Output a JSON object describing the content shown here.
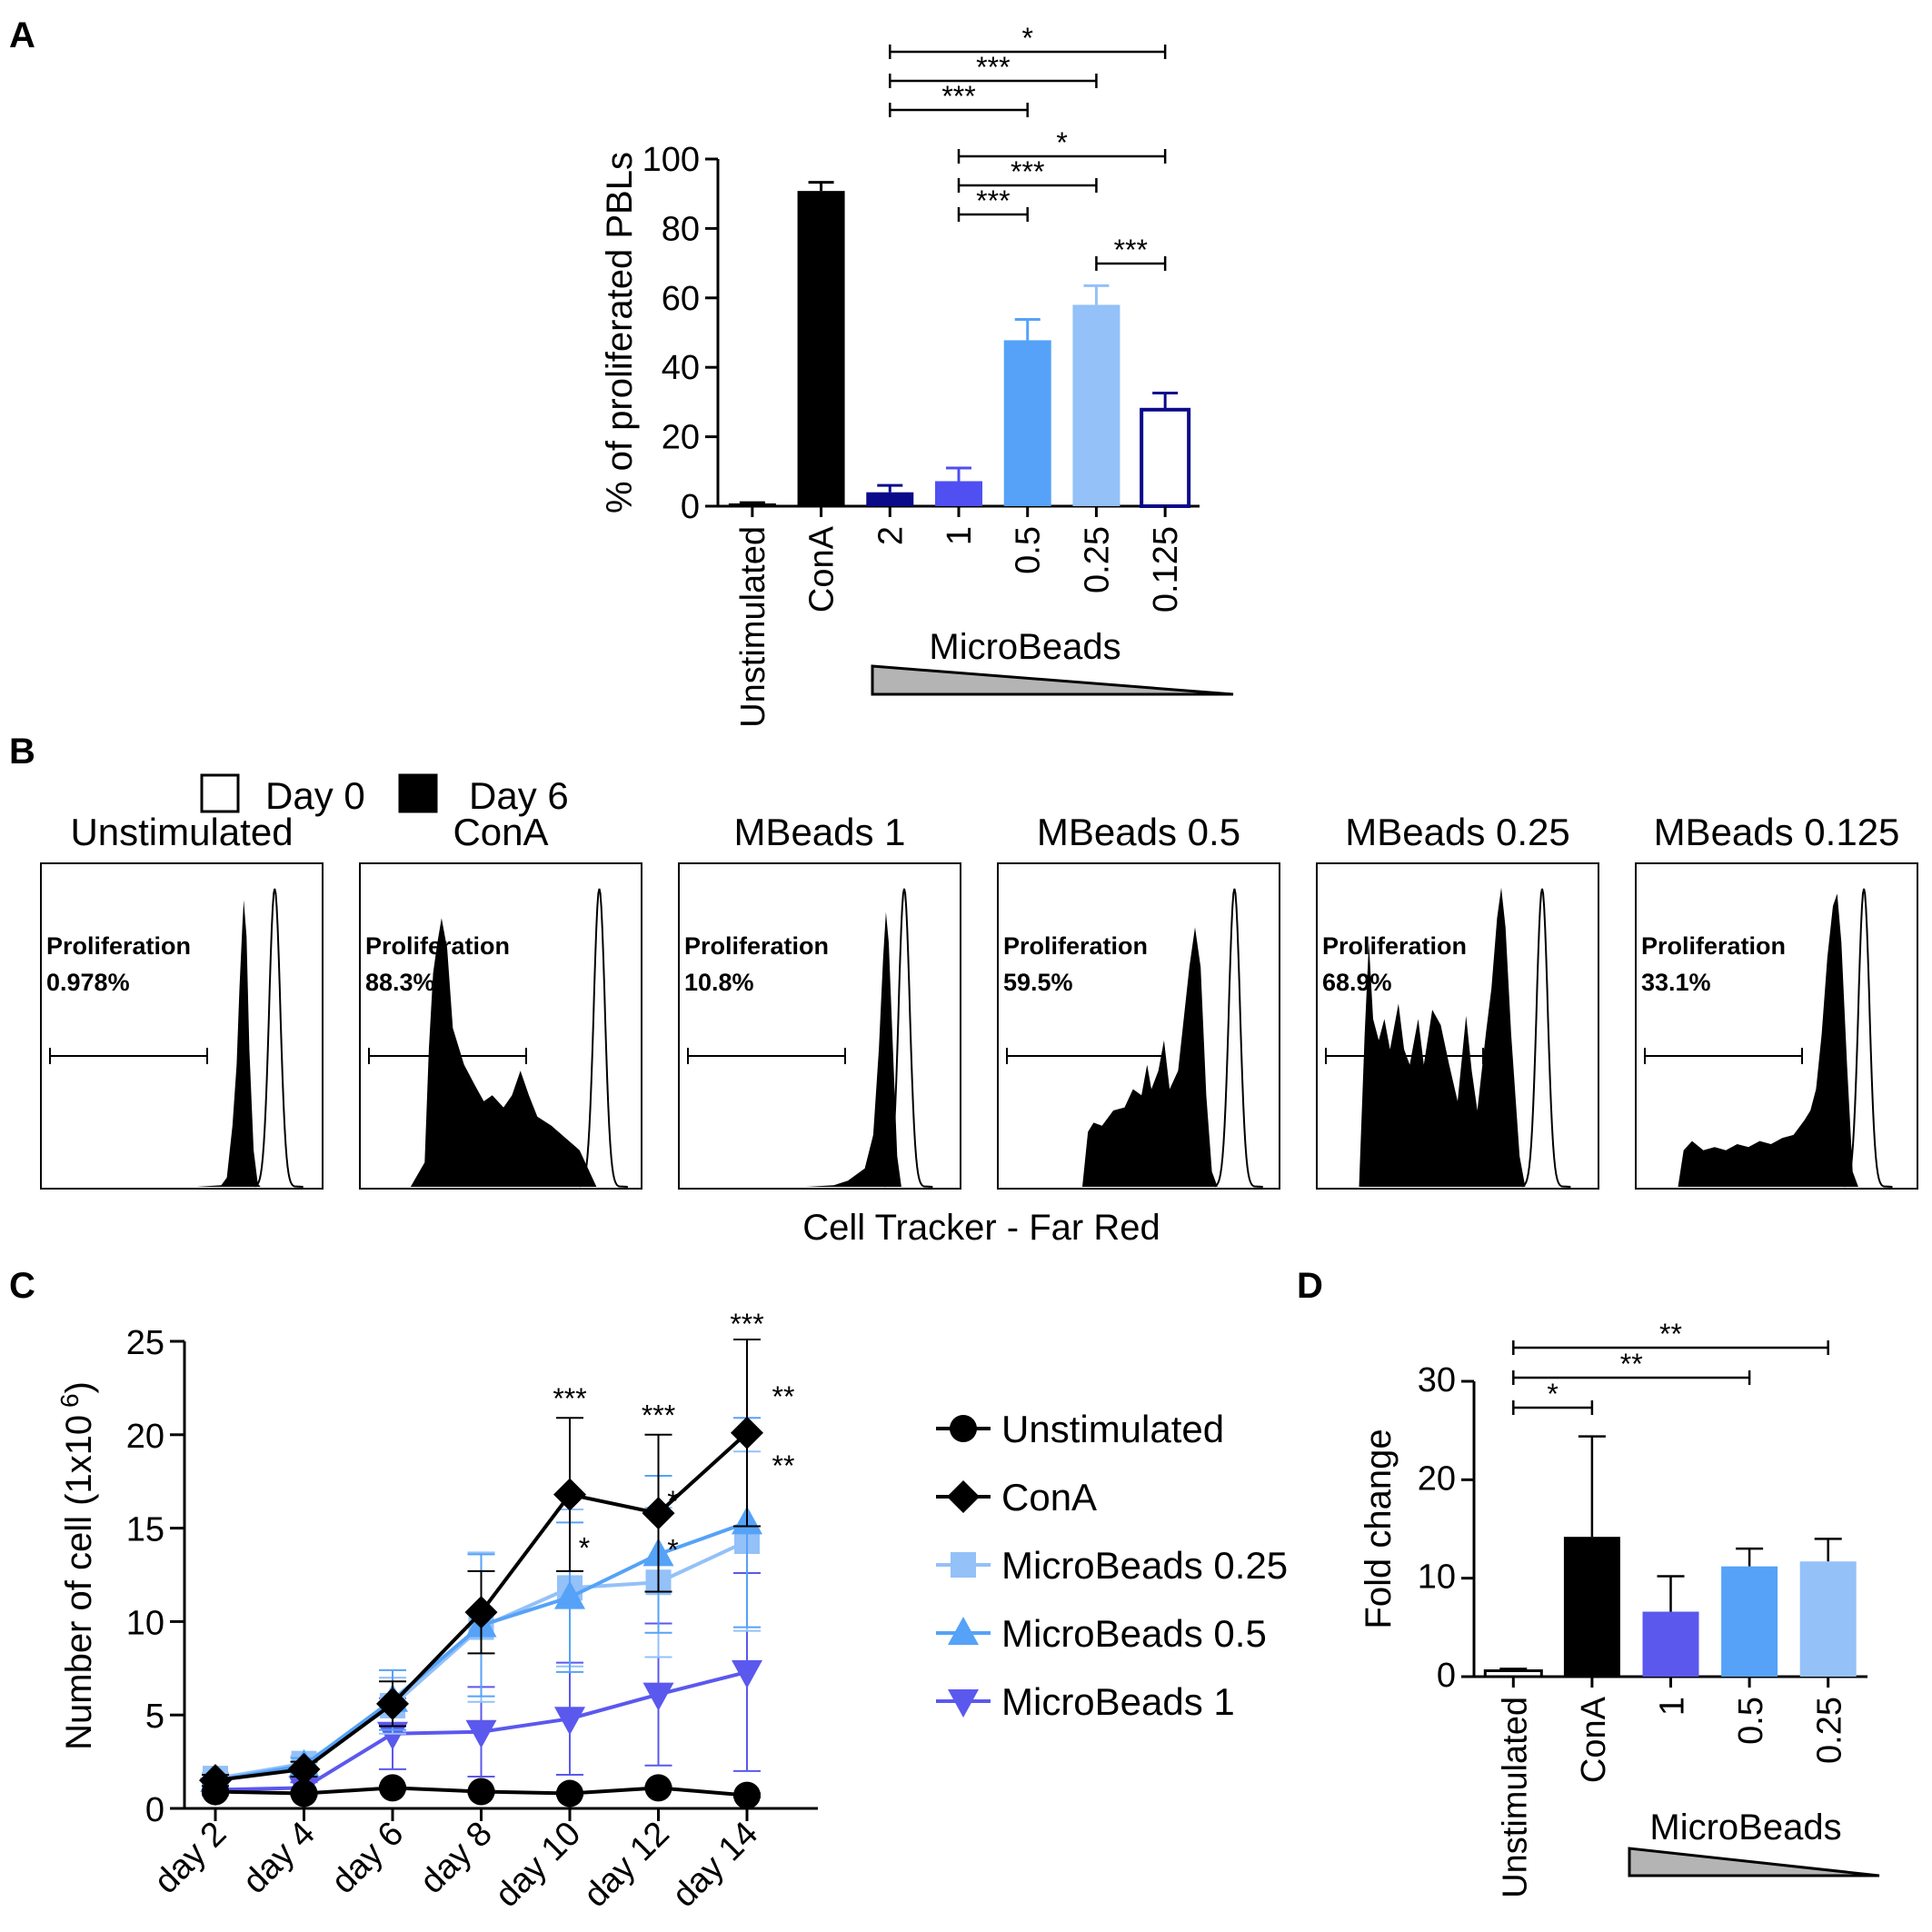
{
  "chart_data": [
    {
      "panel": "A",
      "type": "bar",
      "ylabel": "% of proliferated PBLs",
      "ylim": [
        0,
        100
      ],
      "yticks": [
        0,
        20,
        40,
        60,
        80,
        100
      ],
      "categories": [
        "Unstimulated",
        "ConA",
        "2",
        "1",
        "0.5",
        "0.25",
        "0.125"
      ],
      "values": [
        0.8,
        90.8,
        4.0,
        7.2,
        47.8,
        58.0,
        27.8
      ],
      "errors": [
        0.2,
        2.5,
        2.0,
        3.8,
        6.0,
        5.5,
        4.8
      ],
      "colors": [
        "#000000",
        "#000000",
        "#0a0a8a",
        "#4f4ff2",
        "#55a2f8",
        "#93c1f8",
        "#ffffff"
      ],
      "group_label": "MicroBeads",
      "significance": [
        {
          "from": 2,
          "to": 6,
          "label": "*"
        },
        {
          "from": 2,
          "to": 5,
          "label": "***"
        },
        {
          "from": 2,
          "to": 4,
          "label": "***"
        },
        {
          "from": 3,
          "to": 6,
          "label": "*"
        },
        {
          "from": 3,
          "to": 5,
          "label": "***"
        },
        {
          "from": 3,
          "to": 4,
          "label": "***"
        },
        {
          "from": 5,
          "to": 6,
          "label": "***"
        }
      ]
    },
    {
      "panel": "B",
      "type": "histogram",
      "xlabel": "Cell Tracker - Far Red",
      "legend": [
        {
          "label": "Day 0",
          "fill": "#ffffff"
        },
        {
          "label": "Day 6",
          "fill": "#000000"
        }
      ],
      "gate_label": "Proliferation",
      "panels": [
        {
          "title": "Unstimulated",
          "value": "0.978%"
        },
        {
          "title": "ConA",
          "value": "88.3%"
        },
        {
          "title": "MBeads 1",
          "value": "10.8%"
        },
        {
          "title": "MBeads 0.5",
          "value": "59.5%"
        },
        {
          "title": "MBeads 0.25",
          "value": "68.9%"
        },
        {
          "title": "MBeads 0.125",
          "value": "33.1%"
        }
      ]
    },
    {
      "panel": "C",
      "type": "line",
      "ylabel": "Number of cell (1x10",
      "ylabel_sup": "6",
      "ylabel_end": ")",
      "ylim": [
        0,
        25
      ],
      "yticks": [
        0,
        5,
        10,
        15,
        20,
        25
      ],
      "x": [
        "day 2",
        "day 4",
        "day 6",
        "day 8",
        "day 10",
        "day 12",
        "day 14"
      ],
      "series": [
        {
          "name": "Unstimulated",
          "color": "#000000",
          "marker": "circle",
          "values": [
            0.9,
            0.8,
            1.1,
            0.9,
            0.8,
            1.1,
            0.7
          ],
          "errors": [
            0.1,
            0.1,
            0.1,
            0.1,
            0.1,
            0.1,
            0.1
          ]
        },
        {
          "name": "ConA",
          "color": "#000000",
          "marker": "diamond",
          "values": [
            1.5,
            2.1,
            5.6,
            10.5,
            16.8,
            15.8,
            20.1
          ],
          "errors": [
            0.3,
            0.4,
            1.2,
            2.2,
            4.1,
            4.2,
            5.0
          ]
        },
        {
          "name": "MicroBeads 0.25",
          "color": "#93c1f8",
          "marker": "square",
          "values": [
            1.6,
            2.4,
            5.5,
            9.7,
            11.8,
            12.1,
            14.3
          ],
          "errors": [
            0.3,
            0.4,
            1.5,
            4.0,
            4.2,
            4.0,
            4.8
          ]
        },
        {
          "name": "MicroBeads 0.5",
          "color": "#55a2f8",
          "marker": "triangle-up",
          "values": [
            1.5,
            2.3,
            5.8,
            9.8,
            11.3,
            13.6,
            15.3
          ],
          "errors": [
            0.3,
            0.4,
            1.6,
            3.8,
            4.0,
            4.2,
            5.6
          ]
        },
        {
          "name": "MicroBeads 1",
          "color": "#5b58ee",
          "marker": "triangle-down",
          "values": [
            1.0,
            1.1,
            4.0,
            4.1,
            4.8,
            6.1,
            7.3
          ],
          "errors": [
            0.3,
            0.3,
            1.9,
            2.4,
            3.0,
            3.8,
            5.3
          ]
        }
      ],
      "annotations": [
        {
          "x": 4,
          "y": 21.4,
          "label": "***"
        },
        {
          "x": 5,
          "y": 20.5,
          "label": "***"
        },
        {
          "x": 6,
          "y": 25.4,
          "label": "***"
        },
        {
          "x": 6,
          "y": 21.5,
          "label": "**",
          "dx": 1
        },
        {
          "x": 6,
          "y": 17.8,
          "label": "**",
          "dx": 1
        },
        {
          "x": 4,
          "y": 13.4,
          "label": "*",
          "dx": 0.4
        },
        {
          "x": 5,
          "y": 15.9,
          "label": "*",
          "dx": 0.4
        },
        {
          "x": 5,
          "y": 13.3,
          "label": "*",
          "dx": 0.4
        }
      ]
    },
    {
      "panel": "D",
      "type": "bar",
      "ylabel": "Fold change",
      "ylim": [
        0,
        30
      ],
      "yticks": [
        0,
        10,
        20,
        30
      ],
      "categories": [
        "Unstimulated",
        "ConA",
        "1",
        "0.5",
        "0.25"
      ],
      "values": [
        0.6,
        14.2,
        6.6,
        11.2,
        11.7
      ],
      "errors": [
        0.2,
        10.2,
        3.6,
        1.8,
        2.3
      ],
      "colors": [
        "#ffffff",
        "#000000",
        "#5b58ee",
        "#55a2f8",
        "#93c1f8"
      ],
      "group_label": "MicroBeads",
      "significance": [
        {
          "from": 0,
          "to": 4,
          "label": "**"
        },
        {
          "from": 0,
          "to": 3,
          "label": "**"
        },
        {
          "from": 0,
          "to": 1,
          "label": "*"
        }
      ]
    }
  ]
}
